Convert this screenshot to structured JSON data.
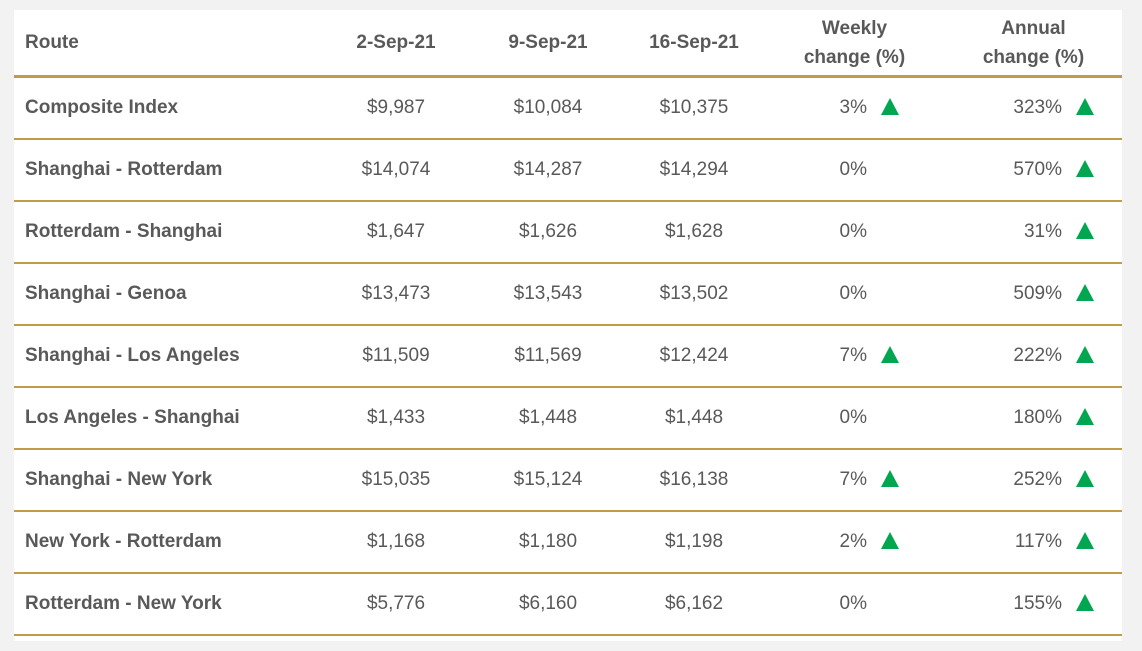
{
  "table": {
    "header": [
      "Route",
      "2-Sep-21",
      "9-Sep-21",
      "16-Sep-21",
      "Weekly change (%)",
      "Annual change (%)"
    ],
    "rows": [
      [
        "Composite Index",
        "$9,987",
        "$10,084",
        "$10,375",
        "3%",
        "323%"
      ],
      [
        "Shanghai - Rotterdam",
        "$14,074",
        "$14,287",
        "$14,294",
        "0%",
        "570%"
      ],
      [
        "Rotterdam - Shanghai",
        "$1,647",
        "$1,626",
        "$1,628",
        "0%",
        "31%"
      ],
      [
        "Shanghai - Genoa",
        "$13,473",
        "$13,543",
        "$13,502",
        "0%",
        "509%"
      ],
      [
        "Shanghai - Los Angeles",
        "$11,509",
        "$11,569",
        "$12,424",
        "7%",
        "222%"
      ],
      [
        "Los Angeles - Shanghai",
        "$1,433",
        "$1,448",
        "$1,448",
        "0%",
        "180%"
      ],
      [
        "Shanghai - New York",
        "$15,035",
        "$15,124",
        "$16,138",
        "7%",
        "252%"
      ],
      [
        "New York - Rotterdam",
        "$1,168",
        "$1,180",
        "$1,198",
        "2%",
        "117%"
      ],
      [
        "Rotterdam - New York",
        "$5,776",
        "$6,160",
        "$6,162",
        "0%",
        "155%"
      ]
    ]
  }
}
